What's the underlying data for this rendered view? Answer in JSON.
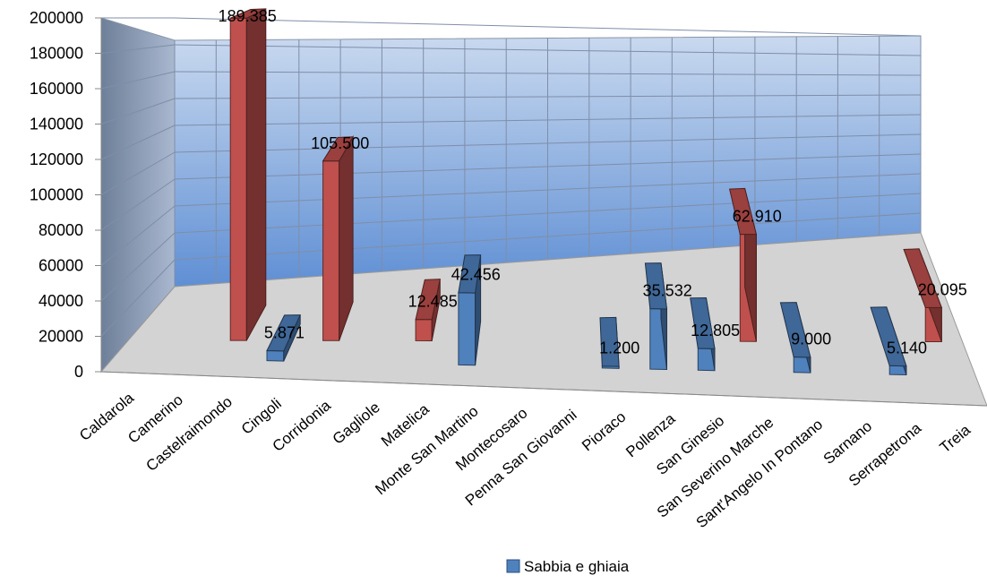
{
  "chart_data": {
    "type": "bar",
    "categories": [
      "Caldarola",
      "Camerino",
      "Castelraimondo",
      "Cingoli",
      "Corridonia",
      "Gagliole",
      "Matelica",
      "Monte San Martino",
      "Montecosaro",
      "Penna San Giovanni",
      "Pioraco",
      "Pollenza",
      "San Ginesio",
      "San Severino Marche",
      "Sant'Angelo In Pontano",
      "Sarnano",
      "Serrapetrona",
      "Treia"
    ],
    "series": [
      {
        "name": "Sabbia e ghiaia",
        "color": "#4f81bd",
        "values": [
          null,
          null,
          null,
          5871,
          null,
          null,
          null,
          42456,
          null,
          null,
          1200,
          35532,
          12805,
          null,
          9000,
          null,
          5140,
          null
        ]
      },
      {
        "name": "",
        "color": "#c0504d",
        "values": [
          null,
          null,
          189385,
          null,
          105500,
          null,
          12485,
          null,
          null,
          null,
          null,
          null,
          null,
          62910,
          null,
          null,
          null,
          20095
        ]
      }
    ],
    "data_labels": [
      {
        "category": "Castelraimondo",
        "series": 1,
        "text": "189.385"
      },
      {
        "category": "Cingoli",
        "series": 0,
        "text": "5.871"
      },
      {
        "category": "Corridonia",
        "series": 1,
        "text": "105.500"
      },
      {
        "category": "Matelica",
        "series": 1,
        "text": "12.485"
      },
      {
        "category": "Monte San Martino",
        "series": 0,
        "text": "42.456"
      },
      {
        "category": "Pioraco",
        "series": 0,
        "text": "1.200"
      },
      {
        "category": "Pollenza",
        "series": 0,
        "text": "35.532"
      },
      {
        "category": "San Ginesio",
        "series": 0,
        "text": "12.805"
      },
      {
        "category": "San Severino Marche",
        "series": 1,
        "text": "62.910"
      },
      {
        "category": "Sant'Angelo In Pontano",
        "series": 0,
        "text": "9.000"
      },
      {
        "category": "Serrapetrona",
        "series": 0,
        "text": "5.140"
      },
      {
        "category": "Treia",
        "series": 1,
        "text": "20.095"
      }
    ],
    "yticks": [
      "0",
      "20000",
      "40000",
      "60000",
      "80000",
      "100000",
      "120000",
      "140000",
      "160000",
      "180000",
      "200000"
    ],
    "ylim": [
      0,
      200000
    ],
    "grid": true,
    "legend": {
      "position": "bottom",
      "entries": [
        "Sabbia e ghiaia"
      ]
    }
  }
}
